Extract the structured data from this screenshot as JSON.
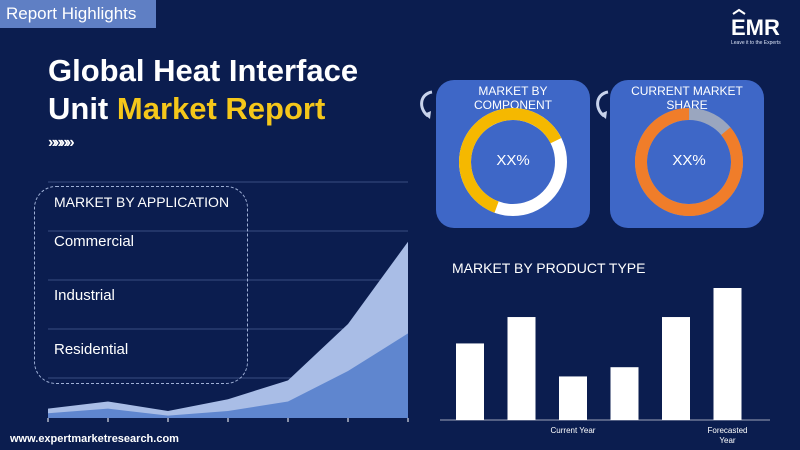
{
  "header": {
    "tag": "Report Highlights",
    "title_line1": "Global Heat Interface",
    "title_line2_plain": "Unit ",
    "title_line2_accent": "Market Report",
    "chevrons": "»»»»"
  },
  "logo": {
    "text": "EMR",
    "tagline": "Leave it to the Experts"
  },
  "application": {
    "heading": "MARKET BY APPLICATION",
    "items": [
      "Commercial",
      "Industrial",
      "Residential"
    ]
  },
  "component": {
    "heading": "MARKET BY COMPONENT",
    "value_label": "XX%",
    "share": 0.62,
    "color": "#f5b800",
    "track": "#ffffff"
  },
  "market_share": {
    "heading": "CURRENT MARKET SHARE",
    "value_label": "XX%",
    "share": 0.86,
    "color": "#f07d2a",
    "track": "#9aa6bf"
  },
  "product_type": {
    "heading": "MARKET BY PRODUCT TYPE"
  },
  "footer": {
    "url": "www.expertmarketresearch.com"
  },
  "colors": {
    "background": "#0b1d4f",
    "accent_yellow": "#f5c71a",
    "card_blue": "#3e67c7",
    "area_light": "#a9bde6",
    "area_dark": "#5f86cf"
  },
  "chart_data": [
    {
      "type": "area",
      "series": [
        {
          "values": [
            4,
            7,
            3,
            8,
            16,
            40,
            75
          ]
        },
        {
          "values": [
            2,
            4,
            1,
            3,
            7,
            20,
            36
          ]
        }
      ],
      "ylim": [
        0,
        80
      ]
    },
    {
      "type": "bar",
      "categories": [
        "",
        "",
        "Current Year",
        "",
        "",
        "Forecasted Year"
      ],
      "values": [
        58,
        78,
        33,
        40,
        78,
        100
      ],
      "ylim": [
        0,
        100
      ]
    }
  ]
}
